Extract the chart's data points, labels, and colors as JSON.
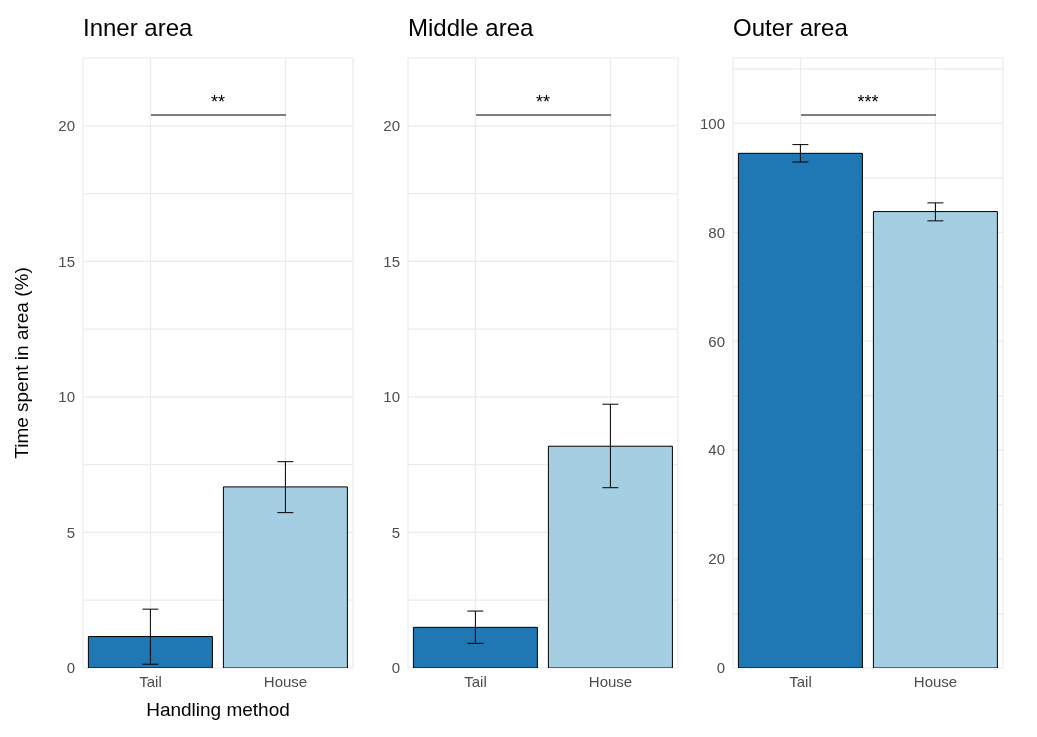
{
  "chart_data": [
    {
      "type": "bar",
      "title": "Inner area",
      "xlabel": "Handling method",
      "ylabel": "Time spent in area (%)",
      "categories": [
        "Tail",
        "House"
      ],
      "values": [
        1.16,
        6.68
      ],
      "colors": [
        "#1f78b4",
        "#a6cee3"
      ],
      "errors": [
        [
          0.14,
          2.17
        ],
        [
          5.73,
          7.61
        ]
      ],
      "ylim": [
        0,
        22.5
      ],
      "yticks": [
        0,
        {
          "value": 2.5,
          "label": null
        },
        5,
        {
          "value": 7.5,
          "label": null
        },
        10,
        {
          "value": 12.5,
          "label": null
        },
        15,
        {
          "value": 17.5,
          "label": null
        },
        20,
        {
          "value": 22.5,
          "label": null
        }
      ],
      "grid": true,
      "annotations": [
        "**"
      ]
    },
    {
      "type": "bar",
      "title": "Middle area",
      "categories": [
        "Tail",
        "House"
      ],
      "values": [
        1.5,
        8.18
      ],
      "colors": [
        "#1f78b4",
        "#a6cee3"
      ],
      "errors": [
        [
          0.91,
          2.1
        ],
        [
          6.65,
          9.73
        ]
      ],
      "ylim": [
        0,
        22.5
      ],
      "yticks": [
        0,
        {
          "value": 2.5,
          "label": null
        },
        5,
        {
          "value": 7.5,
          "label": null
        },
        10,
        {
          "value": 12.5,
          "label": null
        },
        15,
        {
          "value": 17.5,
          "label": null
        },
        20,
        {
          "value": 22.5,
          "label": null
        }
      ],
      "grid": true,
      "annotations": [
        "**"
      ]
    },
    {
      "type": "bar",
      "title": "Outer area",
      "categories": [
        "Tail",
        "House"
      ],
      "values": [
        94.5,
        83.8
      ],
      "colors": [
        "#1f78b4",
        "#a6cee3"
      ],
      "errors": [
        [
          92.9,
          96.1
        ],
        [
          82.1,
          85.4
        ]
      ],
      "ylim": [
        0,
        112
      ],
      "yticks": [
        0,
        {
          "value": 10,
          "label": null
        },
        20,
        {
          "value": 30,
          "label": null
        },
        40,
        {
          "value": 50,
          "label": null
        },
        60,
        {
          "value": 70,
          "label": null
        },
        80,
        {
          "value": 90,
          "label": null
        },
        100,
        {
          "value": 110,
          "label": null
        }
      ],
      "grid": true,
      "annotations": [
        "***"
      ]
    }
  ]
}
